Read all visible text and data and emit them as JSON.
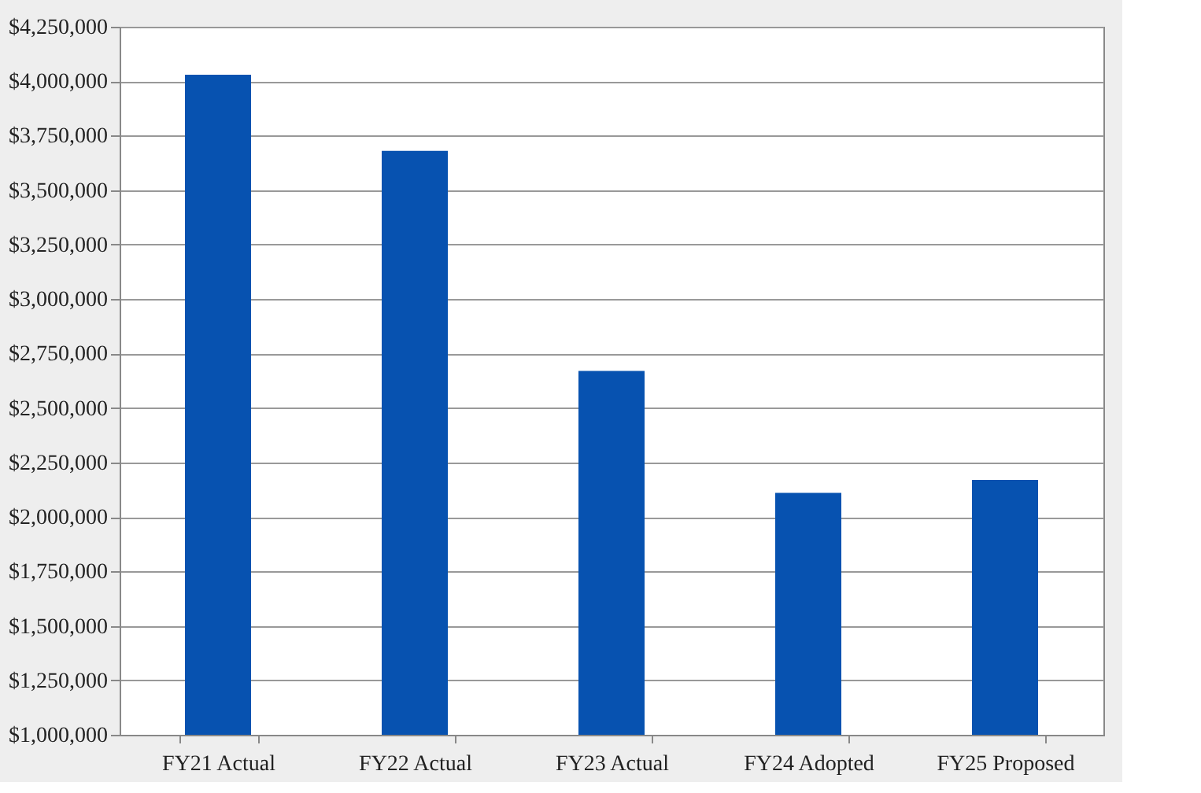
{
  "chart_data": {
    "type": "bar",
    "categories": [
      "FY21 Actual",
      "FY22 Actual",
      "FY23 Actual",
      "FY24 Adopted",
      "FY25 Proposed"
    ],
    "values": [
      4030000,
      3680000,
      2670000,
      2110000,
      2170000
    ],
    "color": "#0752b0",
    "ylim": [
      1000000,
      4250000
    ],
    "yticks": [
      {
        "value": 1000000,
        "label": "$1,000,000"
      },
      {
        "value": 1250000,
        "label": "$1,250,000"
      },
      {
        "value": 1500000,
        "label": "$1,500,000"
      },
      {
        "value": 1750000,
        "label": "$1,750,000"
      },
      {
        "value": 2000000,
        "label": "$2,000,000"
      },
      {
        "value": 2250000,
        "label": "$2,250,000"
      },
      {
        "value": 2500000,
        "label": "$2,500,000"
      },
      {
        "value": 2750000,
        "label": "$2,750,000"
      },
      {
        "value": 3000000,
        "label": "$3,000,000"
      },
      {
        "value": 3250000,
        "label": "$3,250,000"
      },
      {
        "value": 3500000,
        "label": "$3,500,000"
      },
      {
        "value": 3750000,
        "label": "$3,750,000"
      },
      {
        "value": 4000000,
        "label": "$4,000,000"
      },
      {
        "value": 4250000,
        "label": "$4,250,000"
      }
    ],
    "grid": "y"
  }
}
